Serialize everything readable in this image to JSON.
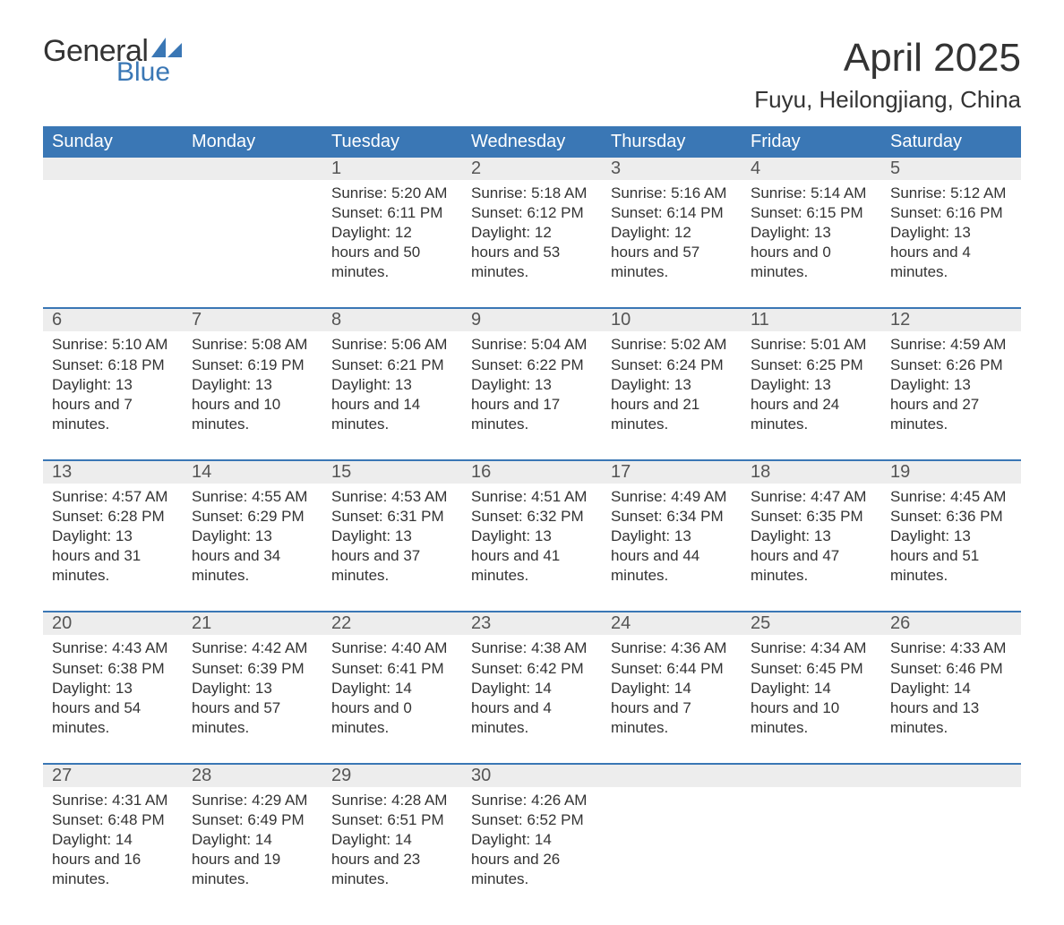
{
  "logo": {
    "text_general": "General",
    "text_blue": "Blue",
    "sail_color": "#3a77b5"
  },
  "title": "April 2025",
  "location": "Fuyu, Heilongjiang, China",
  "colors": {
    "header_bg": "#3a77b5",
    "header_text": "#ffffff",
    "date_row_bg": "#ededed",
    "divider": "#3a77b5",
    "body_text": "#333333",
    "page_bg": "#ffffff"
  },
  "typography": {
    "title_fontsize": 44,
    "location_fontsize": 26,
    "day_header_fontsize": 20,
    "date_fontsize": 20,
    "info_fontsize": 17
  },
  "day_headers": [
    "Sunday",
    "Monday",
    "Tuesday",
    "Wednesday",
    "Thursday",
    "Friday",
    "Saturday"
  ],
  "labels": {
    "sunrise": "Sunrise:",
    "sunset": "Sunset:",
    "daylight": "Daylight:"
  },
  "weeks": [
    [
      null,
      null,
      {
        "date": "1",
        "sunrise": "5:20 AM",
        "sunset": "6:11 PM",
        "daylight": "12 hours and 50 minutes."
      },
      {
        "date": "2",
        "sunrise": "5:18 AM",
        "sunset": "6:12 PM",
        "daylight": "12 hours and 53 minutes."
      },
      {
        "date": "3",
        "sunrise": "5:16 AM",
        "sunset": "6:14 PM",
        "daylight": "12 hours and 57 minutes."
      },
      {
        "date": "4",
        "sunrise": "5:14 AM",
        "sunset": "6:15 PM",
        "daylight": "13 hours and 0 minutes."
      },
      {
        "date": "5",
        "sunrise": "5:12 AM",
        "sunset": "6:16 PM",
        "daylight": "13 hours and 4 minutes."
      }
    ],
    [
      {
        "date": "6",
        "sunrise": "5:10 AM",
        "sunset": "6:18 PM",
        "daylight": "13 hours and 7 minutes."
      },
      {
        "date": "7",
        "sunrise": "5:08 AM",
        "sunset": "6:19 PM",
        "daylight": "13 hours and 10 minutes."
      },
      {
        "date": "8",
        "sunrise": "5:06 AM",
        "sunset": "6:21 PM",
        "daylight": "13 hours and 14 minutes."
      },
      {
        "date": "9",
        "sunrise": "5:04 AM",
        "sunset": "6:22 PM",
        "daylight": "13 hours and 17 minutes."
      },
      {
        "date": "10",
        "sunrise": "5:02 AM",
        "sunset": "6:24 PM",
        "daylight": "13 hours and 21 minutes."
      },
      {
        "date": "11",
        "sunrise": "5:01 AM",
        "sunset": "6:25 PM",
        "daylight": "13 hours and 24 minutes."
      },
      {
        "date": "12",
        "sunrise": "4:59 AM",
        "sunset": "6:26 PM",
        "daylight": "13 hours and 27 minutes."
      }
    ],
    [
      {
        "date": "13",
        "sunrise": "4:57 AM",
        "sunset": "6:28 PM",
        "daylight": "13 hours and 31 minutes."
      },
      {
        "date": "14",
        "sunrise": "4:55 AM",
        "sunset": "6:29 PM",
        "daylight": "13 hours and 34 minutes."
      },
      {
        "date": "15",
        "sunrise": "4:53 AM",
        "sunset": "6:31 PM",
        "daylight": "13 hours and 37 minutes."
      },
      {
        "date": "16",
        "sunrise": "4:51 AM",
        "sunset": "6:32 PM",
        "daylight": "13 hours and 41 minutes."
      },
      {
        "date": "17",
        "sunrise": "4:49 AM",
        "sunset": "6:34 PM",
        "daylight": "13 hours and 44 minutes."
      },
      {
        "date": "18",
        "sunrise": "4:47 AM",
        "sunset": "6:35 PM",
        "daylight": "13 hours and 47 minutes."
      },
      {
        "date": "19",
        "sunrise": "4:45 AM",
        "sunset": "6:36 PM",
        "daylight": "13 hours and 51 minutes."
      }
    ],
    [
      {
        "date": "20",
        "sunrise": "4:43 AM",
        "sunset": "6:38 PM",
        "daylight": "13 hours and 54 minutes."
      },
      {
        "date": "21",
        "sunrise": "4:42 AM",
        "sunset": "6:39 PM",
        "daylight": "13 hours and 57 minutes."
      },
      {
        "date": "22",
        "sunrise": "4:40 AM",
        "sunset": "6:41 PM",
        "daylight": "14 hours and 0 minutes."
      },
      {
        "date": "23",
        "sunrise": "4:38 AM",
        "sunset": "6:42 PM",
        "daylight": "14 hours and 4 minutes."
      },
      {
        "date": "24",
        "sunrise": "4:36 AM",
        "sunset": "6:44 PM",
        "daylight": "14 hours and 7 minutes."
      },
      {
        "date": "25",
        "sunrise": "4:34 AM",
        "sunset": "6:45 PM",
        "daylight": "14 hours and 10 minutes."
      },
      {
        "date": "26",
        "sunrise": "4:33 AM",
        "sunset": "6:46 PM",
        "daylight": "14 hours and 13 minutes."
      }
    ],
    [
      {
        "date": "27",
        "sunrise": "4:31 AM",
        "sunset": "6:48 PM",
        "daylight": "14 hours and 16 minutes."
      },
      {
        "date": "28",
        "sunrise": "4:29 AM",
        "sunset": "6:49 PM",
        "daylight": "14 hours and 19 minutes."
      },
      {
        "date": "29",
        "sunrise": "4:28 AM",
        "sunset": "6:51 PM",
        "daylight": "14 hours and 23 minutes."
      },
      {
        "date": "30",
        "sunrise": "4:26 AM",
        "sunset": "6:52 PM",
        "daylight": "14 hours and 26 minutes."
      },
      null,
      null,
      null
    ]
  ]
}
